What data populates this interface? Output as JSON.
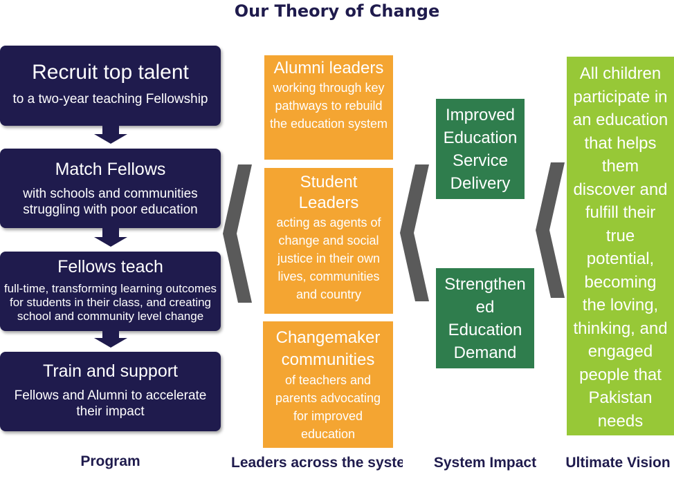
{
  "title": "Our Theory of Change",
  "program": [
    {
      "heading": "Recruit top talent",
      "sub": "to a two-year teaching Fellowship"
    },
    {
      "heading": "Match Fellows",
      "sub": "with schools and communities struggling with poor education"
    },
    {
      "heading": "Fellows teach",
      "sub": "full-time, transforming learning outcomes for students in their class, and creating school and community level change"
    },
    {
      "heading": "Train and support",
      "sub": "Fellows and Alumni to accelerate their impact"
    }
  ],
  "leaders": [
    {
      "heading": "Alumni leaders",
      "sub": "working through key pathways to rebuild the education system"
    },
    {
      "heading": "Student Leaders",
      "sub": "acting as agents of change and social justice in their own lives, communities and country"
    },
    {
      "heading": "Changemaker communities",
      "sub": "of teachers and parents advocating for improved education"
    }
  ],
  "impact": [
    "Improved Education Service Delivery",
    "Strengthen ed Education Demand"
  ],
  "vision": "All children participate in an education that helps them discover and fulfill their true potential, becoming the loving, thinking, and engaged people that Pakistan needs",
  "labels": {
    "program": "Program",
    "leaders": "Leaders across the syste",
    "impact": "System Impact",
    "vision": "Ultimate Vision"
  },
  "colors": {
    "program": "#1f1b4d",
    "leaders": "#f4a532",
    "impact": "#2f7d4d",
    "vision": "#97c837",
    "chevron": "#5a5a5a"
  }
}
